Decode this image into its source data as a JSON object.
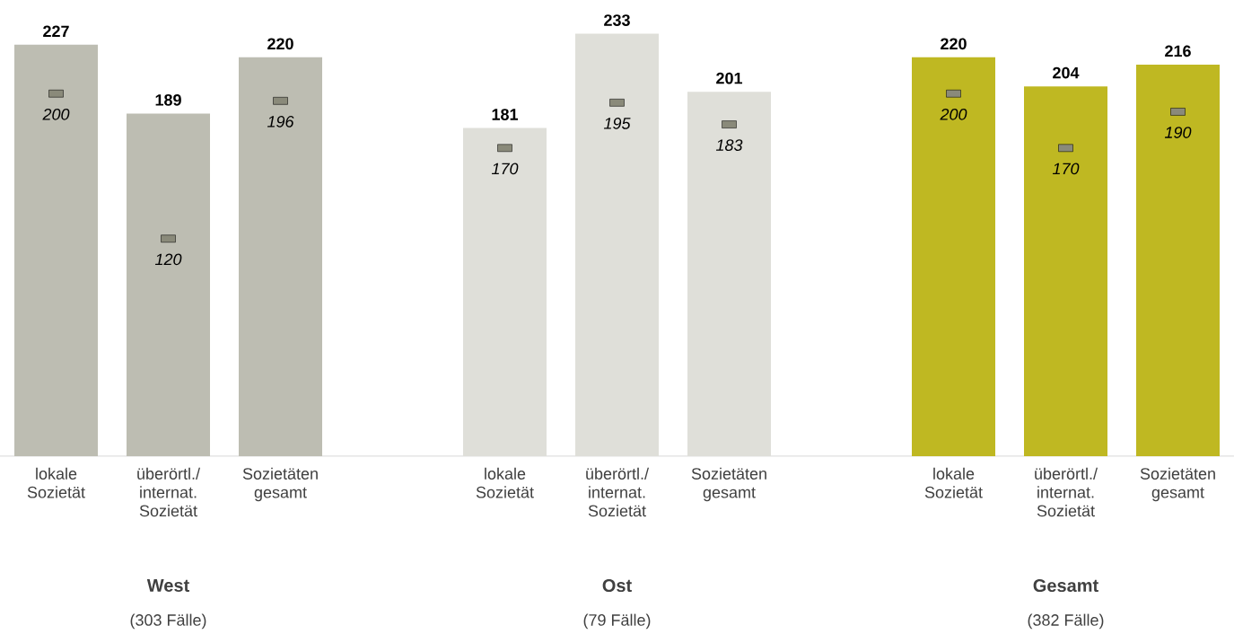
{
  "chart_data": {
    "type": "bar",
    "categories": [
      "lokale Sozietät",
      "überörtl./ internat. Sozietät",
      "Sozietäten gesamt",
      null,
      "lokale Sozietät",
      "überörtl./ internat. Sozietät",
      "Sozietäten gesamt",
      null,
      "lokale Sozietät",
      "überörtl./ internat. Sozietät",
      "Sozietäten gesamt"
    ],
    "series": [
      {
        "colors": [
          "#bdbdb2",
          "#bdbdb2",
          "#bdbdb2",
          null,
          "#dfdfd9",
          "#dfdfd9",
          "#dfdfd9",
          null,
          "#bfb822",
          "#bfb822",
          "#bfb822"
        ],
        "values": [
          227,
          189,
          220,
          null,
          181,
          233,
          201,
          null,
          220,
          204,
          216
        ]
      },
      {
        "type": "scatter",
        "marker": "square",
        "color": "#8a8a7a",
        "values": [
          200,
          120,
          196,
          null,
          170,
          195,
          183,
          null,
          200,
          170,
          190
        ]
      }
    ],
    "data_labels": true,
    "annotations": [
      "West",
      "(303 Fälle)",
      "Ost",
      "(79 Fälle)",
      "Gesamt",
      "(382 Fälle)"
    ]
  }
}
